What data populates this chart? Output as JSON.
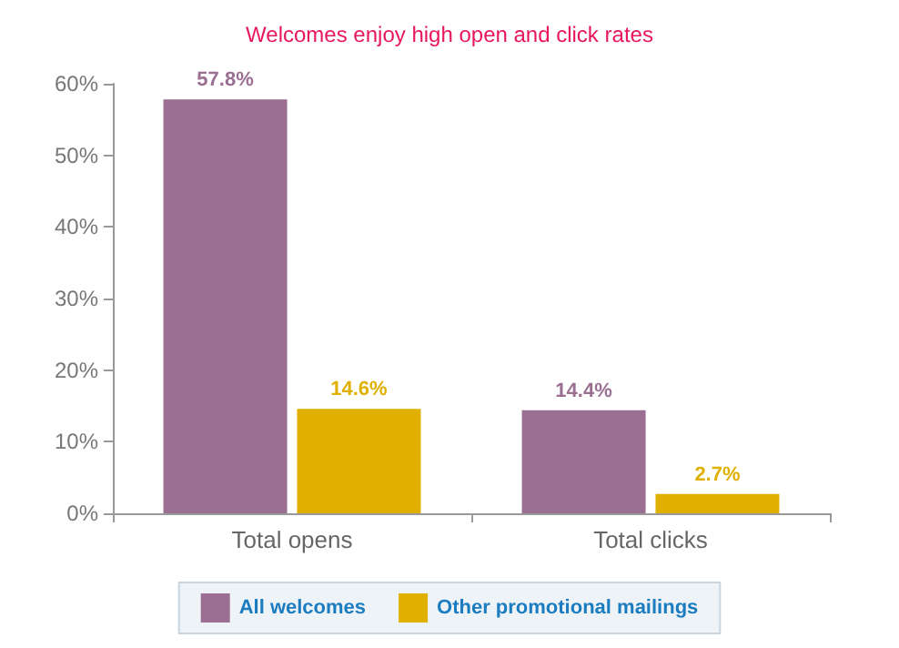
{
  "chart_data": {
    "type": "bar",
    "title": "Welcomes enjoy high open and click rates",
    "categories": [
      "Total opens",
      "Total clicks"
    ],
    "series": [
      {
        "name": "All welcomes",
        "color": "#9a6f91",
        "values": [
          57.8,
          14.4
        ],
        "value_labels": [
          "57.8%",
          "14.4%"
        ]
      },
      {
        "name": "Other promotional mailings",
        "color": "#e0b000",
        "values": [
          14.6,
          2.7
        ],
        "value_labels": [
          "14.6%",
          "2.7%"
        ]
      }
    ],
    "ylim": [
      0,
      60
    ],
    "yticks": [
      {
        "value": 0,
        "label": "0%"
      },
      {
        "value": 10,
        "label": "10%"
      },
      {
        "value": 20,
        "label": "20%"
      },
      {
        "value": 30,
        "label": "30%"
      },
      {
        "value": 40,
        "label": "40%"
      },
      {
        "value": 50,
        "label": "50%"
      },
      {
        "value": 60,
        "label": "60%"
      }
    ],
    "grid": false,
    "legend": "bottom"
  }
}
